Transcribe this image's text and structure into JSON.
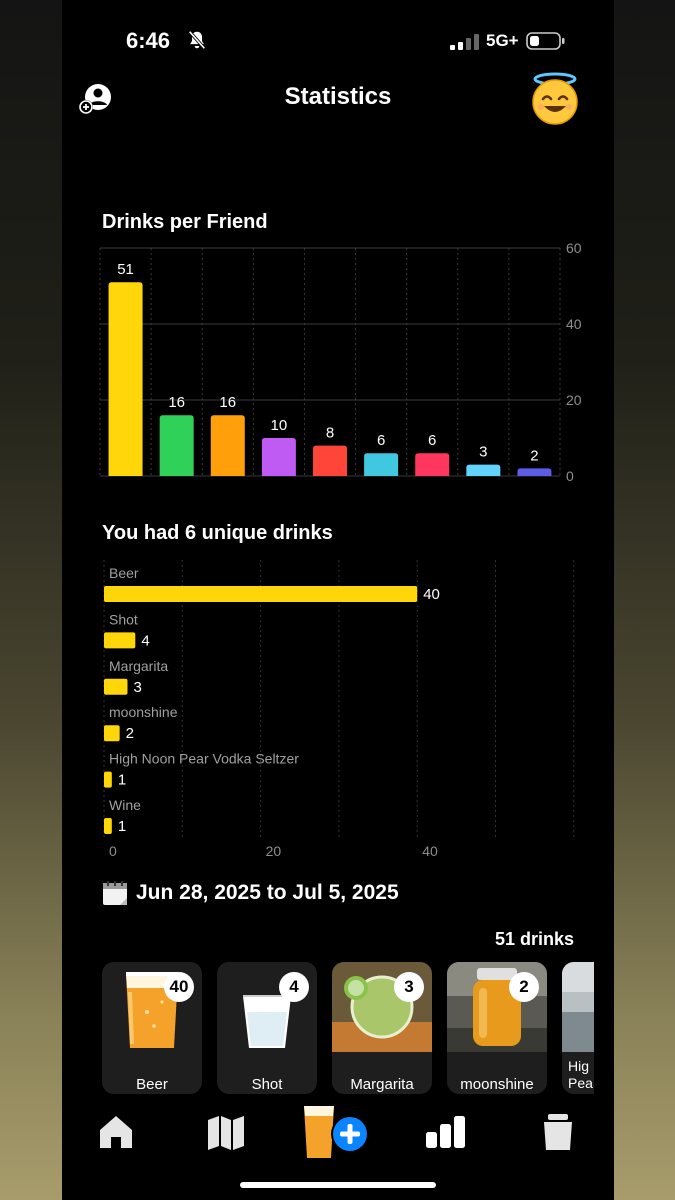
{
  "status_bar": {
    "time": "6:46",
    "network": "5G+"
  },
  "header": {
    "title": "Statistics"
  },
  "sections": {
    "friends_title": "Drinks per Friend",
    "unique_title": "You had 6 unique drinks"
  },
  "chart_data": [
    {
      "type": "bar",
      "title": "Drinks per Friend",
      "categories": [
        "",
        "",
        "",
        "",
        "",
        "",
        "",
        "",
        ""
      ],
      "values": [
        51,
        16,
        16,
        10,
        8,
        6,
        6,
        3,
        2
      ],
      "colors": [
        "#FFD60A",
        "#30D158",
        "#FF9F0A",
        "#BF5AF2",
        "#FF453A",
        "#40C8E0",
        "#FF375F",
        "#64D2FF",
        "#5E5CE6"
      ],
      "ylim": [
        0,
        60
      ],
      "yticks": [
        "0",
        "20",
        "40",
        "60"
      ],
      "ytick_values": [
        0,
        20,
        40,
        60
      ],
      "grid": true,
      "value_labels": [
        "51",
        "16",
        "16",
        "10",
        "8",
        "6",
        "6",
        "3",
        "2"
      ]
    },
    {
      "type": "bar",
      "orientation": "horizontal",
      "title": "You had 6 unique drinks",
      "categories": [
        "Beer",
        "Shot",
        "Margarita",
        "moonshine",
        "High Noon Pear Vodka Seltzer",
        "Wine"
      ],
      "values": [
        40,
        4,
        3,
        2,
        1,
        1
      ],
      "color": "#FFD60A",
      "xlim": [
        0,
        60
      ],
      "xticks": [
        "0",
        "20",
        "40"
      ],
      "xtick_values": [
        0,
        20,
        40
      ],
      "grid": true,
      "value_labels": [
        "40",
        "4",
        "3",
        "2",
        "1",
        "1"
      ]
    }
  ],
  "summary": {
    "date_range": "Jun 28, 2025 to Jul 5, 2025",
    "total": "51 drinks"
  },
  "tiles": [
    {
      "label": "Beer",
      "count": "40",
      "image": "beer-glass"
    },
    {
      "label": "Shot",
      "count": "4",
      "image": "shot-glass"
    },
    {
      "label": "Margarita",
      "count": "3",
      "image": "margarita-photo"
    },
    {
      "label": "moonshine",
      "count": "2",
      "image": "moonshine-jar-photo"
    },
    {
      "label": "Hig\nPea",
      "count": "",
      "image": "seltzer-photo"
    }
  ],
  "tab_bar": {
    "items": [
      "home-icon",
      "map-icon",
      "add-drink-icon",
      "stats-icon",
      "cup-icon"
    ]
  },
  "colors": {
    "accent": "#FFD60A",
    "add_button": "#0A84FF",
    "background": "#000000"
  }
}
